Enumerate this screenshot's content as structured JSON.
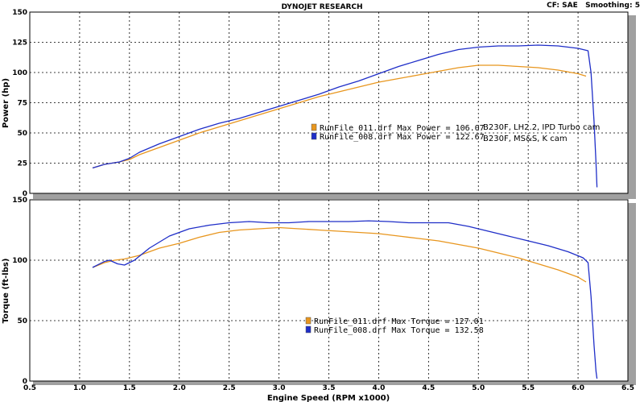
{
  "header": {
    "title": "DYNOJET RESEARCH",
    "corner": "CF: SAE   Smoothing: 5"
  },
  "colors": {
    "run_011": "#e8961e",
    "run_008": "#1f2ec8",
    "grid": "#000000",
    "panel_bg": "#ffffff"
  },
  "chart_data": [
    {
      "type": "line",
      "panel": "power",
      "xlabel": "",
      "ylabel": "Power (hp)",
      "xlim": [
        0.5,
        6.5
      ],
      "ylim": [
        0,
        150
      ],
      "x_ticks": [
        "0.5",
        "1.0",
        "1.5",
        "2.0",
        "2.5",
        "3.0",
        "3.5",
        "4.0",
        "4.5",
        "5.0",
        "5.5",
        "6.0",
        "6.5"
      ],
      "y_ticks": [
        "0",
        "25",
        "50",
        "75",
        "100",
        "125",
        "150"
      ],
      "grid": true,
      "legend": [
        {
          "label": "RunFile_011.drf Max Power = 106.07",
          "color": "#e8961e"
        },
        {
          "label": "RunFile_008.drf Max Power = 122.67",
          "color": "#1f2ec8"
        }
      ],
      "annotations": [
        "B230F, LH2.2, IPD Turbo cam",
        "B230F, MS&S, K cam"
      ],
      "series": [
        {
          "name": "RunFile_011.drf",
          "color": "#e8961e",
          "x": [
            1.13,
            1.25,
            1.4,
            1.5,
            1.6,
            1.8,
            2.0,
            2.2,
            2.4,
            2.6,
            2.8,
            3.0,
            3.2,
            3.4,
            3.6,
            3.8,
            4.0,
            4.2,
            4.4,
            4.6,
            4.8,
            5.0,
            5.2,
            5.4,
            5.6,
            5.8,
            6.0,
            6.08
          ],
          "y": [
            21,
            24,
            26,
            28,
            32,
            38,
            44,
            50,
            55,
            60,
            65,
            70,
            75,
            80,
            84,
            88,
            92,
            95,
            98,
            101,
            104,
            106,
            106,
            105,
            104,
            102,
            99,
            97
          ]
        },
        {
          "name": "RunFile_008.drf",
          "color": "#1f2ec8",
          "x": [
            1.13,
            1.25,
            1.4,
            1.5,
            1.6,
            1.8,
            2.0,
            2.2,
            2.4,
            2.6,
            2.8,
            3.0,
            3.2,
            3.4,
            3.6,
            3.8,
            4.0,
            4.2,
            4.4,
            4.6,
            4.8,
            5.0,
            5.2,
            5.4,
            5.6,
            5.8,
            6.0,
            6.1,
            6.13,
            6.16,
            6.18,
            6.19
          ],
          "y": [
            21,
            24,
            26,
            29,
            34,
            41,
            47,
            53,
            58,
            62,
            67,
            72,
            77,
            82,
            88,
            93,
            99,
            105,
            110,
            115,
            119,
            121,
            122,
            122,
            122.67,
            122,
            120,
            118,
            100,
            60,
            25,
            5
          ]
        }
      ]
    },
    {
      "type": "line",
      "panel": "torque",
      "xlabel": "Engine Speed (RPM x1000)",
      "ylabel": "Torque (ft-lbs)",
      "xlim": [
        0.5,
        6.5
      ],
      "ylim": [
        0,
        150
      ],
      "x_ticks": [
        "0.5",
        "1.0",
        "1.5",
        "2.0",
        "2.5",
        "3.0",
        "3.5",
        "4.0",
        "4.5",
        "5.0",
        "5.5",
        "6.0",
        "6.5"
      ],
      "y_ticks": [
        "0",
        "50",
        "100",
        "150"
      ],
      "grid": true,
      "legend": [
        {
          "label": "RunFile_011.drf Max Torque = 127.01",
          "color": "#e8961e"
        },
        {
          "label": "RunFile_008.drf Max Torque = 132.58",
          "color": "#1f2ec8"
        }
      ],
      "series": [
        {
          "name": "RunFile_011.drf",
          "color": "#e8961e",
          "x": [
            1.13,
            1.25,
            1.35,
            1.45,
            1.6,
            1.8,
            2.0,
            2.2,
            2.4,
            2.6,
            2.8,
            3.0,
            3.2,
            3.4,
            3.6,
            3.8,
            4.0,
            4.2,
            4.4,
            4.6,
            4.8,
            5.0,
            5.2,
            5.4,
            5.6,
            5.8,
            6.0,
            6.08
          ],
          "y": [
            94,
            98,
            100,
            101,
            104,
            110,
            114,
            119,
            123,
            125,
            126,
            127,
            126,
            125,
            124,
            123,
            122,
            120,
            118,
            116,
            113,
            110,
            106,
            102,
            97,
            92,
            86,
            82
          ]
        },
        {
          "name": "RunFile_008.drf",
          "color": "#1f2ec8",
          "x": [
            1.13,
            1.25,
            1.3,
            1.38,
            1.45,
            1.55,
            1.7,
            1.9,
            2.1,
            2.3,
            2.5,
            2.7,
            2.9,
            3.1,
            3.3,
            3.5,
            3.7,
            3.9,
            4.1,
            4.3,
            4.5,
            4.7,
            4.9,
            5.1,
            5.3,
            5.5,
            5.7,
            5.9,
            6.05,
            6.1,
            6.13,
            6.16,
            6.18,
            6.19
          ],
          "y": [
            94,
            99,
            100,
            97,
            96,
            100,
            110,
            120,
            126,
            129,
            131,
            132,
            131,
            131,
            132,
            132,
            132,
            132.58,
            132,
            131,
            131,
            131,
            128,
            124,
            120,
            116,
            112,
            107,
            102,
            98,
            70,
            30,
            8,
            2
          ]
        }
      ]
    }
  ]
}
